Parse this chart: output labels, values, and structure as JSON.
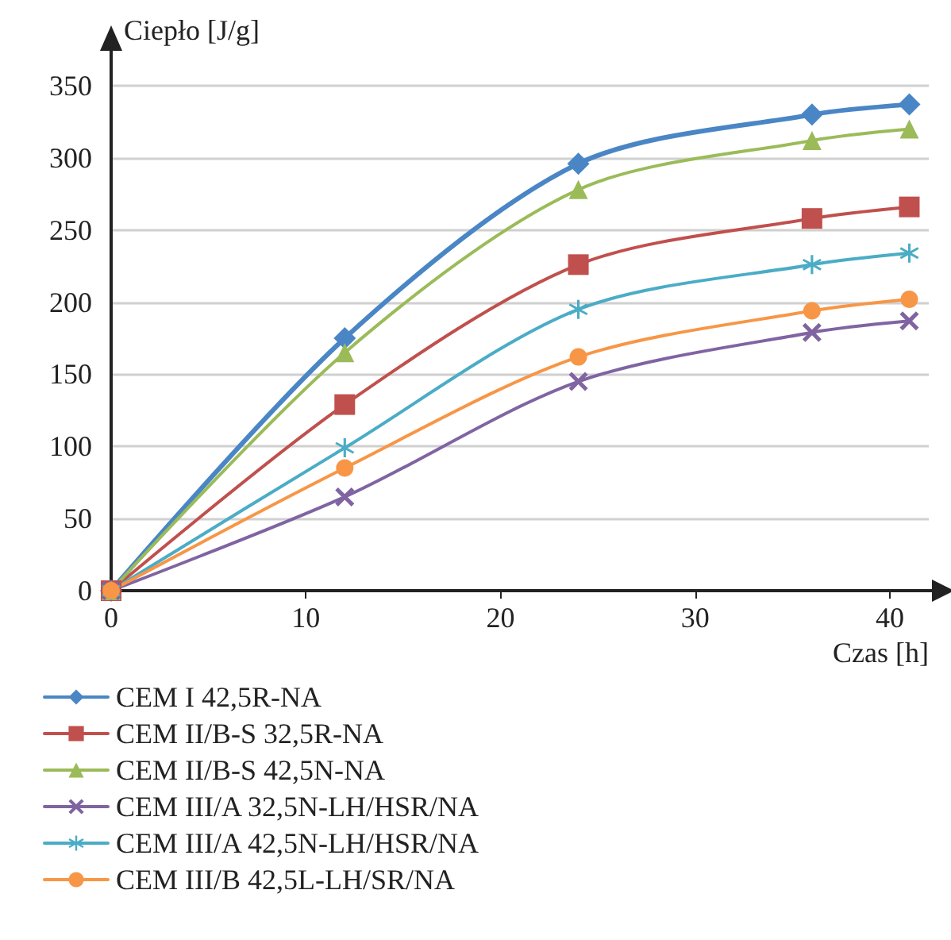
{
  "chart_data": {
    "type": "line",
    "xlabel": "Czas [h]",
    "ylabel": "Ciepło [J/g]",
    "xlim": [
      0,
      42
    ],
    "xticks": [
      0,
      10,
      20,
      30,
      40
    ],
    "ylim": [
      0,
      350
    ],
    "yticks": [
      0,
      50,
      100,
      150,
      200,
      250,
      300,
      350
    ],
    "grid": "y",
    "legend": "bottom left",
    "line_style": "solid",
    "series": [
      {
        "name": "CEM I 42,5R-NA",
        "color": "#4a86c5",
        "marker": "diamond",
        "x": [
          0,
          12,
          24,
          36,
          41
        ],
        "values": [
          0,
          175,
          296,
          330,
          337
        ]
      },
      {
        "name": "CEM II/B-S 32,5R-NA",
        "color": "#c0504d",
        "marker": "square",
        "x": [
          0,
          12,
          24,
          36,
          41
        ],
        "values": [
          0,
          129,
          226,
          258,
          266
        ]
      },
      {
        "name": "CEM II/B-S 42,5N-NA",
        "color": "#9bbb59",
        "marker": "triangle",
        "x": [
          0,
          12,
          24,
          36,
          41
        ],
        "values": [
          0,
          165,
          278,
          312,
          320
        ]
      },
      {
        "name": "CEM III/A 32,5N-LH/HSR/NA",
        "color": "#8064a2",
        "marker": "cross",
        "x": [
          0,
          12,
          24,
          36,
          41
        ],
        "values": [
          0,
          65,
          145,
          179,
          187
        ]
      },
      {
        "name": "CEM III/A 42,5N-LH/HSR/NA",
        "color": "#4bacc6",
        "marker": "star",
        "x": [
          0,
          12,
          24,
          36,
          41
        ],
        "values": [
          0,
          99,
          195,
          226,
          234
        ]
      },
      {
        "name": "CEM III/B 42,5L-LH/SR/NA",
        "color": "#f79646",
        "marker": "circle",
        "x": [
          0,
          12,
          24,
          36,
          41
        ],
        "values": [
          0,
          85,
          162,
          194,
          202
        ]
      }
    ]
  }
}
